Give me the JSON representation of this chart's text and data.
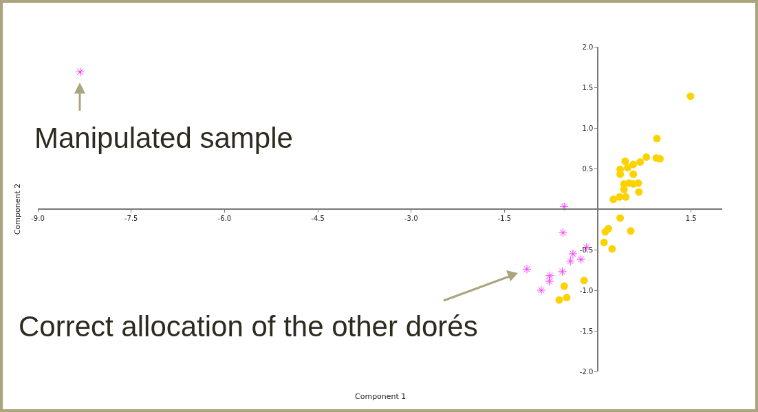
{
  "chart_data": {
    "type": "scatter",
    "xlabel": "Component 1",
    "ylabel": "Component 2",
    "xlim": [
      -9.0,
      2.0
    ],
    "ylim": [
      -2.0,
      2.0
    ],
    "xticks": [
      {
        "value": -9.0,
        "label": "-9.0"
      },
      {
        "value": -7.5,
        "label": "-7.5"
      },
      {
        "value": -6.0,
        "label": "-6.0"
      },
      {
        "value": -4.5,
        "label": "-4.5"
      },
      {
        "value": -3.0,
        "label": "-3.0"
      },
      {
        "value": -1.5,
        "label": "-1.5"
      },
      {
        "value": 1.5,
        "label": "1.5"
      }
    ],
    "yticks": [
      {
        "value": -2.0,
        "label": "-2.0"
      },
      {
        "value": -1.5,
        "label": "-1.5"
      },
      {
        "value": -1.0,
        "label": "-1.0"
      },
      {
        "value": -0.5,
        "label": "-0.5"
      },
      {
        "value": 0.5,
        "label": "0.5"
      },
      {
        "value": 1.0,
        "label": "1.0"
      },
      {
        "value": 1.5,
        "label": "1.5"
      },
      {
        "value": 2.0,
        "label": "2.0"
      }
    ],
    "grid": false,
    "series": [
      {
        "color": "#fcd200",
        "marker": "circle",
        "x": [
          1.49,
          0.95,
          0.94,
          1.0,
          0.78,
          0.68,
          0.44,
          0.57,
          0.36,
          0.36,
          0.48,
          0.57,
          0.57,
          0.65,
          0.42,
          0.5,
          0.42,
          0.66,
          0.25,
          0.35,
          0.45,
          0.36,
          0.17,
          0.12,
          0.53,
          0.1,
          0.23,
          -0.22,
          -0.54,
          -0.5,
          -0.62
        ],
        "values": [
          1.39,
          0.87,
          0.63,
          0.62,
          0.64,
          0.58,
          0.59,
          0.55,
          0.49,
          0.43,
          0.51,
          0.43,
          0.31,
          0.32,
          0.31,
          0.32,
          0.24,
          0.21,
          0.12,
          0.15,
          0.15,
          -0.11,
          -0.24,
          -0.28,
          -0.27,
          -0.41,
          -0.49,
          -0.88,
          -0.95,
          -1.09,
          -1.12
        ]
      },
      {
        "color": "#ff33ff",
        "marker": "cross",
        "x": [
          -8.32,
          -0.54,
          -0.56,
          -0.18,
          -0.4,
          -0.44,
          -0.27,
          -0.57,
          -1.14,
          -0.77,
          -0.78,
          -0.91
        ],
        "values": [
          1.69,
          0.03,
          -0.29,
          -0.47,
          -0.55,
          -0.64,
          -0.62,
          -0.77,
          -0.74,
          -0.82,
          -0.89,
          -1.0
        ]
      }
    ],
    "annotations": [
      "Manipulated sample",
      "Correct allocation of the other dorés"
    ]
  }
}
